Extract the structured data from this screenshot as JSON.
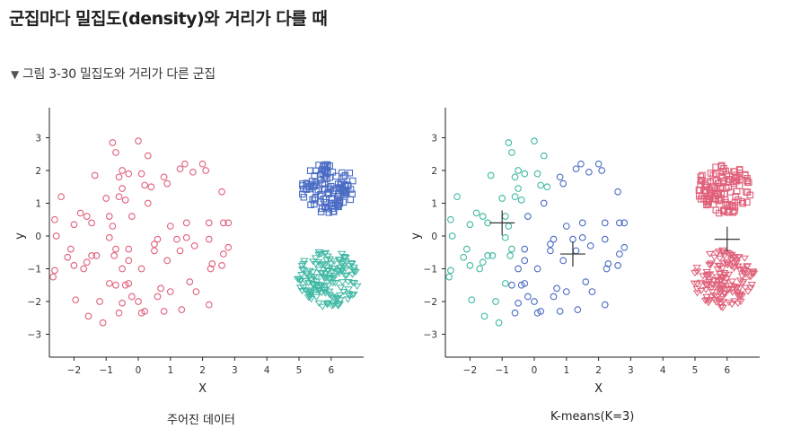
{
  "heading": "군집마다 밀집도(density)와 거리가 다를 때",
  "caption": {
    "marker": "▼",
    "text": "그림 3-30  밀집도와 거리가 다른 군집"
  },
  "colors": {
    "pink": "#e0607a",
    "blue": "#4a6cc4",
    "teal": "#3fb8a4",
    "centroid": "#333333",
    "axis": "#222222"
  },
  "chart_data": [
    {
      "type": "scatter",
      "title": "주어진 데이터",
      "xlabel": "X",
      "ylabel": "y",
      "xlim": [
        -2.7,
        7
      ],
      "ylim": [
        -3.7,
        4
      ],
      "xticks": [
        -2,
        -1,
        0,
        1,
        2,
        3,
        4,
        5,
        6
      ],
      "yticks": [
        -3,
        -2,
        -1,
        0,
        1,
        2,
        3
      ],
      "grid": false,
      "series": [
        {
          "marker": "circle",
          "color": "#e0607a",
          "points": [
            [
              -0.8,
              2.85
            ],
            [
              0,
              2.9
            ],
            [
              -0.7,
              2.55
            ],
            [
              0.3,
              2.45
            ],
            [
              1.3,
              2.05
            ],
            [
              1.45,
              2.2
            ],
            [
              2.0,
              2.2
            ],
            [
              2.1,
              2.0
            ],
            [
              -0.5,
              2.0
            ],
            [
              -0.3,
              1.9
            ],
            [
              -0.6,
              1.8
            ],
            [
              0.1,
              1.9
            ],
            [
              -1.35,
              1.85
            ],
            [
              0.8,
              1.8
            ],
            [
              0.9,
              1.6
            ],
            [
              1.7,
              1.95
            ],
            [
              0.2,
              1.55
            ],
            [
              0.4,
              1.5
            ],
            [
              -0.5,
              1.45
            ],
            [
              -0.6,
              1.2
            ],
            [
              -0.4,
              1.1
            ],
            [
              -1.0,
              1.15
            ],
            [
              -2.4,
              1.2
            ],
            [
              2.6,
              1.35
            ],
            [
              0.3,
              1.0
            ],
            [
              -1.8,
              0.7
            ],
            [
              -1.6,
              0.6
            ],
            [
              -2.6,
              0.5
            ],
            [
              -0.9,
              0.6
            ],
            [
              -0.2,
              0.6
            ],
            [
              1.5,
              0.4
            ],
            [
              2.2,
              0.4
            ],
            [
              2.65,
              0.4
            ],
            [
              2.8,
              0.4
            ],
            [
              1.0,
              0.3
            ],
            [
              -2.0,
              0.35
            ],
            [
              -1.45,
              0.4
            ],
            [
              -0.8,
              0.3
            ],
            [
              -2.55,
              0.0
            ],
            [
              -0.9,
              -0.05
            ],
            [
              0.6,
              -0.1
            ],
            [
              1.2,
              -0.1
            ],
            [
              1.5,
              -0.05
            ],
            [
              2.2,
              -0.1
            ],
            [
              0.5,
              -0.25
            ],
            [
              0.5,
              -0.45
            ],
            [
              1.3,
              -0.45
            ],
            [
              1.75,
              -0.3
            ],
            [
              2.8,
              -0.35
            ],
            [
              -2.1,
              -0.4
            ],
            [
              -0.7,
              -0.4
            ],
            [
              -0.3,
              -0.4
            ],
            [
              2.65,
              -0.55
            ],
            [
              -2.2,
              -0.65
            ],
            [
              -1.3,
              -0.6
            ],
            [
              -1.45,
              -0.6
            ],
            [
              -0.75,
              -0.6
            ],
            [
              -0.3,
              -0.75
            ],
            [
              0.9,
              -0.75
            ],
            [
              -1.6,
              -0.8
            ],
            [
              -2.0,
              -0.9
            ],
            [
              -1.7,
              -1.0
            ],
            [
              2.3,
              -0.85
            ],
            [
              2.6,
              -0.9
            ],
            [
              -0.5,
              -1.0
            ],
            [
              2.25,
              -1.0
            ],
            [
              -2.6,
              -1.05
            ],
            [
              0.1,
              -1.0
            ],
            [
              -2.65,
              -1.25
            ],
            [
              -0.7,
              -1.5
            ],
            [
              -0.4,
              -1.5
            ],
            [
              -0.9,
              -1.45
            ],
            [
              -0.3,
              -1.45
            ],
            [
              1.6,
              -1.4
            ],
            [
              0.7,
              -1.6
            ],
            [
              1.0,
              -1.7
            ],
            [
              0.6,
              -1.85
            ],
            [
              1.8,
              -1.7
            ],
            [
              -0.2,
              -1.85
            ],
            [
              -1.95,
              -1.95
            ],
            [
              0.0,
              -2.0
            ],
            [
              2.2,
              -2.1
            ],
            [
              -1.2,
              -2.0
            ],
            [
              -0.5,
              -2.05
            ],
            [
              1.35,
              -2.25
            ],
            [
              0.8,
              -2.3
            ],
            [
              -0.6,
              -2.35
            ],
            [
              0.1,
              -2.35
            ],
            [
              0.2,
              -2.3
            ],
            [
              -1.55,
              -2.45
            ],
            [
              -1.1,
              -2.65
            ]
          ]
        },
        {
          "marker": "square",
          "color": "#4a6cc4",
          "cluster": {
            "cx": 5.9,
            "cy": 1.45,
            "rx": 0.85,
            "ry": 0.78,
            "n": 120
          }
        },
        {
          "marker": "triangle-down",
          "color": "#3fb8a4",
          "cluster": {
            "cx": 5.9,
            "cy": -1.3,
            "rx": 0.95,
            "ry": 0.88,
            "n": 150
          }
        }
      ],
      "centroids": []
    },
    {
      "type": "scatter",
      "title": "K-means(K=3)",
      "xlabel": "X",
      "ylabel": "y",
      "xlim": [
        -2.7,
        7
      ],
      "ylim": [
        -3.7,
        4
      ],
      "xticks": [
        -2,
        -1,
        0,
        1,
        2,
        3,
        4,
        5,
        6
      ],
      "yticks": [
        -3,
        -2,
        -1,
        0,
        1,
        2,
        3
      ],
      "grid": false,
      "series": [
        {
          "marker": "circle",
          "color": "#3fb8a4",
          "points": [
            [
              -0.8,
              2.85
            ],
            [
              0,
              2.9
            ],
            [
              -0.7,
              2.55
            ],
            [
              0.3,
              2.45
            ],
            [
              -0.5,
              2.0
            ],
            [
              -0.3,
              1.9
            ],
            [
              -0.6,
              1.8
            ],
            [
              0.1,
              1.9
            ],
            [
              -1.35,
              1.85
            ],
            [
              0.2,
              1.55
            ],
            [
              0.4,
              1.5
            ],
            [
              -0.5,
              1.45
            ],
            [
              -0.6,
              1.2
            ],
            [
              -0.4,
              1.1
            ],
            [
              -1.0,
              1.15
            ],
            [
              -2.4,
              1.2
            ],
            [
              -1.8,
              0.7
            ],
            [
              -1.6,
              0.6
            ],
            [
              -2.6,
              0.5
            ],
            [
              -0.9,
              0.6
            ],
            [
              -2.0,
              0.35
            ],
            [
              -1.45,
              0.4
            ],
            [
              -0.8,
              0.3
            ],
            [
              -2.55,
              0.0
            ],
            [
              -0.9,
              -0.05
            ],
            [
              -2.1,
              -0.4
            ],
            [
              -0.7,
              -0.4
            ],
            [
              -2.2,
              -0.65
            ],
            [
              -1.3,
              -0.6
            ],
            [
              -1.45,
              -0.6
            ],
            [
              -0.75,
              -0.6
            ],
            [
              -1.6,
              -0.8
            ],
            [
              -2.0,
              -0.9
            ],
            [
              -1.7,
              -1.0
            ],
            [
              -2.6,
              -1.05
            ],
            [
              -2.65,
              -1.25
            ],
            [
              -0.9,
              -1.45
            ],
            [
              -1.95,
              -1.95
            ],
            [
              -1.2,
              -2.0
            ],
            [
              -1.55,
              -2.45
            ],
            [
              -1.1,
              -2.65
            ]
          ]
        },
        {
          "marker": "circle",
          "color": "#4a6cc4",
          "points": [
            [
              1.3,
              2.05
            ],
            [
              1.45,
              2.2
            ],
            [
              2.0,
              2.2
            ],
            [
              2.1,
              2.0
            ],
            [
              0.8,
              1.8
            ],
            [
              0.9,
              1.6
            ],
            [
              1.7,
              1.95
            ],
            [
              2.6,
              1.35
            ],
            [
              0.3,
              1.0
            ],
            [
              -0.2,
              0.6
            ],
            [
              1.5,
              0.4
            ],
            [
              2.2,
              0.4
            ],
            [
              2.65,
              0.4
            ],
            [
              2.8,
              0.4
            ],
            [
              1.0,
              0.3
            ],
            [
              0.6,
              -0.1
            ],
            [
              1.2,
              -0.1
            ],
            [
              1.5,
              -0.05
            ],
            [
              2.2,
              -0.1
            ],
            [
              0.5,
              -0.25
            ],
            [
              0.5,
              -0.45
            ],
            [
              1.3,
              -0.45
            ],
            [
              1.75,
              -0.3
            ],
            [
              2.8,
              -0.35
            ],
            [
              -0.3,
              -0.4
            ],
            [
              2.65,
              -0.55
            ],
            [
              -0.3,
              -0.75
            ],
            [
              0.9,
              -0.75
            ],
            [
              2.3,
              -0.85
            ],
            [
              2.6,
              -0.9
            ],
            [
              -0.5,
              -1.0
            ],
            [
              2.25,
              -1.0
            ],
            [
              0.1,
              -1.0
            ],
            [
              -0.7,
              -1.5
            ],
            [
              -0.4,
              -1.5
            ],
            [
              -0.3,
              -1.45
            ],
            [
              1.6,
              -1.4
            ],
            [
              0.7,
              -1.6
            ],
            [
              1.0,
              -1.7
            ],
            [
              0.6,
              -1.85
            ],
            [
              1.8,
              -1.7
            ],
            [
              -0.2,
              -1.85
            ],
            [
              0.0,
              -2.0
            ],
            [
              2.2,
              -2.1
            ],
            [
              -0.5,
              -2.05
            ],
            [
              1.35,
              -2.25
            ],
            [
              0.8,
              -2.3
            ],
            [
              -0.6,
              -2.35
            ],
            [
              0.1,
              -2.35
            ],
            [
              0.2,
              -2.3
            ]
          ]
        },
        {
          "marker": "square",
          "color": "#e0607a",
          "cluster": {
            "cx": 5.9,
            "cy": 1.45,
            "rx": 0.85,
            "ry": 0.78,
            "n": 120
          }
        },
        {
          "marker": "triangle-down",
          "color": "#e0607a",
          "cluster": {
            "cx": 5.9,
            "cy": -1.3,
            "rx": 0.95,
            "ry": 0.88,
            "n": 150
          }
        }
      ],
      "centroids": [
        [
          -1.0,
          0.4
        ],
        [
          1.2,
          -0.55
        ],
        [
          6.0,
          -0.1
        ]
      ]
    }
  ]
}
